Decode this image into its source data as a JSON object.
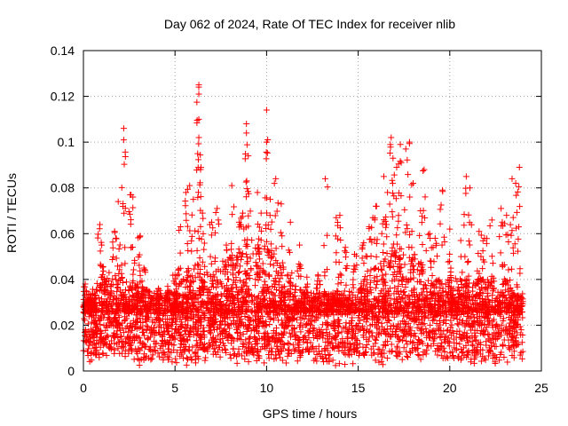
{
  "chart_data": {
    "type": "scatter",
    "title": "Day 062 of 2024, Rate Of TEC Index for receiver nlib",
    "xlabel": "GPS time / hours",
    "ylabel": "ROTI / TECUs",
    "xlim": [
      0,
      25
    ],
    "ylim": [
      0,
      0.14
    ],
    "x_ticks": [
      "0",
      "5",
      "10",
      "15",
      "20",
      "25"
    ],
    "y_ticks": [
      "0",
      "0.02",
      "0.04",
      "0.06",
      "0.08",
      "0.1",
      "0.12",
      "0.14"
    ],
    "grid": true,
    "marker": "+",
    "marker_color": "#ff0000",
    "series": [
      {
        "name": "ROTI",
        "sample_points": [
          [
            0.1,
            0.038
          ],
          [
            0.3,
            0.03
          ],
          [
            0.9,
            0.064
          ],
          [
            1.0,
            0.055
          ],
          [
            1.4,
            0.043
          ],
          [
            1.7,
            0.061
          ],
          [
            1.9,
            0.074
          ],
          [
            2.2,
            0.106
          ],
          [
            2.2,
            0.101
          ],
          [
            2.6,
            0.077
          ],
          [
            2.7,
            0.076
          ],
          [
            3.1,
            0.059
          ],
          [
            3.3,
            0.045
          ],
          [
            4.1,
            0.036
          ],
          [
            4.6,
            0.037
          ],
          [
            5.0,
            0.042
          ],
          [
            5.3,
            0.063
          ],
          [
            5.6,
            0.078
          ],
          [
            5.8,
            0.081
          ],
          [
            6.0,
            0.075
          ],
          [
            6.3,
            0.125
          ],
          [
            6.3,
            0.121
          ],
          [
            6.3,
            0.11
          ],
          [
            6.3,
            0.102
          ],
          [
            6.5,
            0.069
          ],
          [
            7.0,
            0.065
          ],
          [
            7.3,
            0.071
          ],
          [
            7.8,
            0.055
          ],
          [
            8.1,
            0.081
          ],
          [
            8.5,
            0.065
          ],
          [
            8.7,
            0.069
          ],
          [
            8.9,
            0.108
          ],
          [
            8.9,
            0.104
          ],
          [
            9.0,
            0.094
          ],
          [
            9.5,
            0.078
          ],
          [
            9.7,
            0.069
          ],
          [
            10.0,
            0.114
          ],
          [
            10.0,
            0.1
          ],
          [
            10.2,
            0.075
          ],
          [
            10.5,
            0.084
          ],
          [
            10.8,
            0.073
          ],
          [
            11.3,
            0.065
          ],
          [
            11.8,
            0.055
          ],
          [
            12.2,
            0.041
          ],
          [
            12.8,
            0.042
          ],
          [
            13.2,
            0.084
          ],
          [
            13.8,
            0.067
          ],
          [
            14.0,
            0.068
          ],
          [
            14.3,
            0.054
          ],
          [
            14.8,
            0.051
          ],
          [
            15.3,
            0.056
          ],
          [
            15.6,
            0.063
          ],
          [
            15.8,
            0.067
          ],
          [
            16.0,
            0.072
          ],
          [
            16.4,
            0.085
          ],
          [
            16.6,
            0.078
          ],
          [
            16.8,
            0.102
          ],
          [
            16.9,
            0.093
          ],
          [
            17.1,
            0.089
          ],
          [
            17.3,
            0.099
          ],
          [
            17.6,
            0.097
          ],
          [
            17.8,
            0.1
          ],
          [
            18.0,
            0.082
          ],
          [
            18.4,
            0.07
          ],
          [
            18.6,
            0.088
          ],
          [
            18.9,
            0.06
          ],
          [
            19.2,
            0.058
          ],
          [
            19.6,
            0.079
          ],
          [
            20.0,
            0.062
          ],
          [
            20.6,
            0.057
          ],
          [
            20.9,
            0.085
          ],
          [
            21.1,
            0.08
          ],
          [
            21.6,
            0.061
          ],
          [
            21.9,
            0.058
          ],
          [
            22.3,
            0.066
          ],
          [
            22.8,
            0.071
          ],
          [
            23.1,
            0.068
          ],
          [
            23.4,
            0.084
          ],
          [
            23.6,
            0.082
          ],
          [
            23.8,
            0.089
          ]
        ],
        "density_profile": {
          "x": [
            0,
            1,
            2,
            3,
            4,
            5,
            6,
            7,
            8,
            9,
            10,
            11,
            12,
            13,
            14,
            15,
            16,
            17,
            18,
            19,
            20,
            21,
            22,
            23,
            24
          ],
          "typical_upper": [
            0.03,
            0.042,
            0.04,
            0.038,
            0.033,
            0.035,
            0.048,
            0.045,
            0.05,
            0.058,
            0.055,
            0.045,
            0.035,
            0.034,
            0.036,
            0.038,
            0.05,
            0.055,
            0.052,
            0.042,
            0.04,
            0.042,
            0.04,
            0.04,
            0.032
          ]
        },
        "baseline_band": [
          0.005,
          0.032
        ]
      }
    ]
  }
}
